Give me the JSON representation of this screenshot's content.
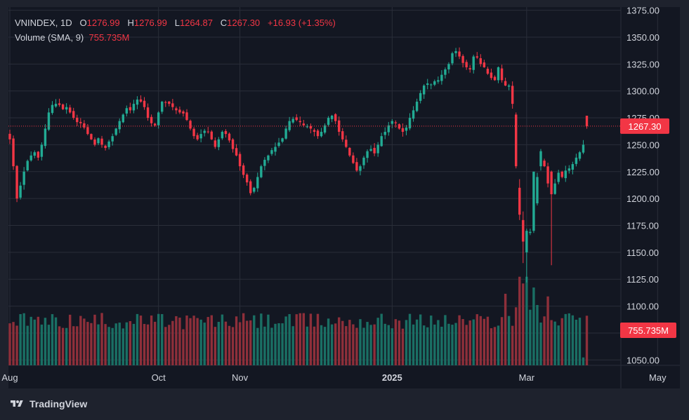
{
  "brand": {
    "name": "TradingView"
  },
  "colors": {
    "up": "#22ab94",
    "down": "#f23645",
    "up_volume": "#1a6f64",
    "down_volume": "#8e2f3a",
    "background": "#131722",
    "frame": "#1e222d",
    "grid": "#2a2e39",
    "text": "#d1d4dc"
  },
  "legend": {
    "symbol": "VNINDEX",
    "interval": "1D",
    "o_label": "O",
    "open": "1276.99",
    "h_label": "H",
    "high": "1276.99",
    "l_label": "L",
    "low": "1264.87",
    "c_label": "C",
    "close": "1267.30",
    "change": "+16.93 (+1.35%)",
    "volume_title": "Volume (SMA, 9)",
    "volume_value": "755.735M"
  },
  "chart_data": {
    "type": "candlestick",
    "title": "VNINDEX, 1D",
    "ylim": [
      1045,
      1378
    ],
    "y_ticks": [
      "1375.00",
      "1350.00",
      "1325.00",
      "1300.00",
      "1275.00",
      "1250.00",
      "1225.00",
      "1200.00",
      "1175.00",
      "1150.00",
      "1125.00",
      "1100.00",
      "1075.00",
      "1050.00"
    ],
    "x_ticks": [
      {
        "label": "Aug",
        "index": 0
      },
      {
        "label": "Oct",
        "index": 42
      },
      {
        "label": "Nov",
        "index": 65
      },
      {
        "label": "2025",
        "index": 108
      },
      {
        "label": "Mar",
        "index": 146
      },
      {
        "label": "May",
        "index": 183
      }
    ],
    "last_price": "1267.30",
    "last_price_value": 1267.3,
    "last_volume": "755.735M",
    "volume_max": 1400,
    "anchors": [
      [
        0,
        1255
      ],
      [
        1,
        1230
      ],
      [
        2,
        1200
      ],
      [
        3,
        1212
      ],
      [
        4,
        1225
      ],
      [
        5,
        1235
      ],
      [
        6,
        1240
      ],
      [
        7,
        1243
      ],
      [
        8,
        1238
      ],
      [
        9,
        1250
      ],
      [
        10,
        1265
      ],
      [
        11,
        1280
      ],
      [
        12,
        1287
      ],
      [
        13,
        1288
      ],
      [
        14,
        1287
      ],
      [
        15,
        1283
      ],
      [
        16,
        1285
      ],
      [
        17,
        1280
      ],
      [
        18,
        1275
      ],
      [
        19,
        1271
      ],
      [
        20,
        1270
      ],
      [
        21,
        1266
      ],
      [
        22,
        1260
      ],
      [
        23,
        1255
      ],
      [
        24,
        1250
      ],
      [
        25,
        1256
      ],
      [
        26,
        1250
      ],
      [
        27,
        1247
      ],
      [
        28,
        1253
      ],
      [
        29,
        1258
      ],
      [
        30,
        1265
      ],
      [
        31,
        1272
      ],
      [
        32,
        1278
      ],
      [
        33,
        1284
      ],
      [
        34,
        1282
      ],
      [
        35,
        1288
      ],
      [
        36,
        1292
      ],
      [
        37,
        1290
      ],
      [
        38,
        1285
      ],
      [
        39,
        1275
      ],
      [
        40,
        1270
      ],
      [
        41,
        1268
      ],
      [
        42,
        1280
      ],
      [
        43,
        1290
      ],
      [
        44,
        1289
      ],
      [
        45,
        1288
      ],
      [
        46,
        1285
      ],
      [
        47,
        1282
      ],
      [
        48,
        1280
      ],
      [
        49,
        1279
      ],
      [
        50,
        1273
      ],
      [
        51,
        1265
      ],
      [
        52,
        1258
      ],
      [
        53,
        1255
      ],
      [
        54,
        1260
      ],
      [
        55,
        1263
      ],
      [
        56,
        1262
      ],
      [
        57,
        1255
      ],
      [
        58,
        1248
      ],
      [
        59,
        1255
      ],
      [
        60,
        1262
      ],
      [
        61,
        1260
      ],
      [
        62,
        1254
      ],
      [
        63,
        1246
      ],
      [
        64,
        1240
      ],
      [
        65,
        1230
      ],
      [
        66,
        1222
      ],
      [
        67,
        1215
      ],
      [
        68,
        1205
      ],
      [
        69,
        1210
      ],
      [
        70,
        1220
      ],
      [
        71,
        1230
      ],
      [
        72,
        1236
      ],
      [
        73,
        1240
      ],
      [
        74,
        1245
      ],
      [
        75,
        1248
      ],
      [
        76,
        1252
      ],
      [
        77,
        1256
      ],
      [
        78,
        1265
      ],
      [
        79,
        1272
      ],
      [
        80,
        1274
      ],
      [
        81,
        1273
      ],
      [
        82,
        1271
      ],
      [
        83,
        1268
      ],
      [
        84,
        1267
      ],
      [
        85,
        1265
      ],
      [
        86,
        1262
      ],
      [
        87,
        1258
      ],
      [
        88,
        1262
      ],
      [
        89,
        1268
      ],
      [
        90,
        1275
      ],
      [
        91,
        1277
      ],
      [
        92,
        1272
      ],
      [
        93,
        1262
      ],
      [
        94,
        1255
      ],
      [
        95,
        1248
      ],
      [
        96,
        1240
      ],
      [
        97,
        1233
      ],
      [
        98,
        1226
      ],
      [
        99,
        1230
      ],
      [
        100,
        1238
      ],
      [
        101,
        1244
      ],
      [
        102,
        1246
      ],
      [
        103,
        1242
      ],
      [
        104,
        1250
      ],
      [
        105,
        1258
      ],
      [
        106,
        1262
      ],
      [
        107,
        1268
      ],
      [
        108,
        1272
      ],
      [
        109,
        1270
      ],
      [
        110,
        1265
      ],
      [
        111,
        1262
      ],
      [
        112,
        1266
      ],
      [
        113,
        1275
      ],
      [
        114,
        1282
      ],
      [
        115,
        1290
      ],
      [
        116,
        1298
      ],
      [
        117,
        1305
      ],
      [
        118,
        1307
      ],
      [
        119,
        1306
      ],
      [
        120,
        1309
      ],
      [
        121,
        1310
      ],
      [
        122,
        1315
      ],
      [
        123,
        1320
      ],
      [
        124,
        1325
      ],
      [
        125,
        1335
      ],
      [
        126,
        1337
      ],
      [
        127,
        1332
      ],
      [
        128,
        1326
      ],
      [
        129,
        1322
      ],
      [
        130,
        1320
      ],
      [
        131,
        1332
      ],
      [
        132,
        1331
      ],
      [
        133,
        1325
      ],
      [
        134,
        1322
      ],
      [
        135,
        1316
      ],
      [
        136,
        1312
      ],
      [
        137,
        1310
      ],
      [
        138,
        1322
      ],
      [
        139,
        1310
      ],
      [
        140,
        1305
      ],
      [
        141,
        1305
      ],
      [
        142,
        1288
      ],
      [
        143,
        1240
      ],
      [
        144,
        1215
      ],
      [
        145,
        1180
      ],
      [
        146,
        1150
      ],
      [
        147,
        1170
      ],
      [
        148,
        1195
      ],
      [
        149,
        1220
      ],
      [
        150,
        1235
      ],
      [
        151,
        1230
      ],
      [
        152,
        1214
      ],
      [
        153,
        1205
      ],
      [
        154,
        1214
      ],
      [
        155,
        1224
      ],
      [
        156,
        1220
      ],
      [
        157,
        1226
      ],
      [
        158,
        1228
      ],
      [
        159,
        1232
      ],
      [
        160,
        1238
      ],
      [
        161,
        1243
      ],
      [
        162,
        1250
      ],
      [
        163,
        1267
      ]
    ]
  }
}
